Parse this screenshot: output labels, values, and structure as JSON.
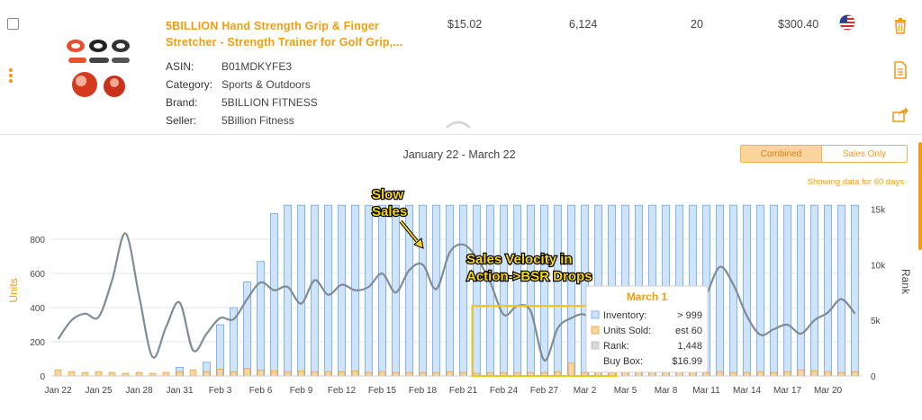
{
  "product": {
    "title_line1": "5BILLION Hand Strength Grip & Finger",
    "title_line2": "Stretcher - Strength Trainer for Golf Grip,...",
    "fields": [
      {
        "label": "ASIN:",
        "value": "B01MDKYFE3"
      },
      {
        "label": "Category:",
        "value": "Sports & Outdoors"
      },
      {
        "label": "Brand:",
        "value": "5BILLION FITNESS"
      },
      {
        "label": "Seller:",
        "value": "5Billion Fitness"
      }
    ],
    "price": "$15.02",
    "rank": "6,124",
    "sales": "20",
    "revenue": "$300.40",
    "marketplace_icon": "us-flag-icon"
  },
  "date_range": "January 22 - March 22",
  "toggle": {
    "combined": "Combined",
    "sales_only": "Sales Only",
    "active": "combined"
  },
  "showing": "Showing data for 60 days",
  "colors": {
    "accent": "#f39c12",
    "inventory_fill": "#cfe3fb",
    "inventory_stroke": "#6fa8ea",
    "units_fill": "#fbd59c",
    "units_stroke": "#f0a23a",
    "rank_line": "#7f8c96",
    "highlight": "#f0c419"
  },
  "chart_data": {
    "type": "bar",
    "xlabels": [
      "Jan 22",
      "Jan 25",
      "Jan 28",
      "Jan 31",
      "Feb 3",
      "Feb 6",
      "Feb 9",
      "Feb 12",
      "Feb 15",
      "Feb 18",
      "Feb 21",
      "Feb 24",
      "Feb 27",
      "Mar 2",
      "Mar 5",
      "Mar 8",
      "Mar 11",
      "Mar 14",
      "Mar 17",
      "Mar 20"
    ],
    "ylabel_left": "Units",
    "ylabel_right": "Rank",
    "yticks_left": [
      "0",
      "200",
      "400",
      "600",
      "800"
    ],
    "yticks_right": [
      "0",
      "5k",
      "10k",
      "15k"
    ],
    "ylim_left": [
      0,
      1000
    ],
    "ylim_right": [
      0,
      16000
    ],
    "series": [
      {
        "name": "Inventory",
        "kind": "bar",
        "values": [
          0,
          0,
          0,
          0,
          0,
          0,
          0,
          0,
          0,
          50,
          0,
          80,
          300,
          400,
          550,
          670,
          950,
          999,
          999,
          999,
          999,
          999,
          999,
          999,
          999,
          999,
          999,
          999,
          999,
          999,
          999,
          999,
          999,
          999,
          999,
          999,
          999,
          999,
          999,
          999,
          999,
          999,
          999,
          999,
          999,
          999,
          999,
          999,
          999,
          999,
          999,
          999,
          999,
          999,
          999,
          999,
          999,
          999,
          999,
          999
        ]
      },
      {
        "name": "Units Sold",
        "kind": "bar",
        "values": [
          35,
          25,
          20,
          25,
          20,
          15,
          20,
          15,
          20,
          25,
          35,
          25,
          40,
          25,
          45,
          35,
          30,
          25,
          30,
          25,
          25,
          25,
          30,
          20,
          25,
          20,
          20,
          20,
          20,
          25,
          20,
          15,
          20,
          20,
          20,
          20,
          20,
          25,
          75,
          20,
          25,
          20,
          30,
          25,
          60,
          20,
          25,
          20,
          20,
          25,
          20,
          20,
          25,
          20,
          25,
          35,
          30,
          25,
          20,
          25
        ]
      },
      {
        "name": "Rank",
        "x": [
          0,
          1,
          2,
          3,
          4,
          5,
          6,
          7,
          8,
          9,
          10,
          11,
          12,
          13,
          14,
          15,
          16,
          17,
          18,
          19,
          20,
          21,
          22,
          23,
          24,
          25,
          26,
          27,
          28,
          29,
          30,
          31,
          32,
          33,
          34,
          35,
          36,
          37,
          38,
          39,
          40,
          41,
          42,
          43,
          44,
          45,
          46,
          47,
          48,
          49,
          50,
          51,
          52,
          53,
          54,
          55,
          56,
          57,
          58,
          59
        ],
        "values": [
          3300,
          5000,
          5600,
          5300,
          8600,
          12800,
          7200,
          1700,
          4400,
          6600,
          2300,
          3800,
          5200,
          5100,
          6900,
          8400,
          7700,
          8000,
          6500,
          8600,
          7300,
          8200,
          7700,
          8000,
          9200,
          7500,
          9500,
          10000,
          7800,
          11100,
          11800,
          10600,
          8400,
          5500,
          6300,
          5800,
          1400,
          4300,
          5200,
          5500,
          4300,
          4400,
          800,
          3900,
          3800,
          6100,
          5800,
          5500,
          7300,
          9800,
          8200,
          5400,
          3700,
          4200,
          4600,
          3800,
          5000,
          5700,
          6900,
          5600
        ]
      }
    ],
    "annotations": [
      "Slow Sales",
      "Sales Velocity in Action->BSR Drops"
    ],
    "tooltip": {
      "title": "March 1",
      "rows": [
        {
          "label": "Inventory:",
          "value": "> 999"
        },
        {
          "label": "Units Sold:",
          "value": "est 60"
        },
        {
          "label": "Rank:",
          "value": "1,448"
        },
        {
          "label": "Buy Box:",
          "value": "$16.99"
        }
      ]
    },
    "grid": true
  }
}
